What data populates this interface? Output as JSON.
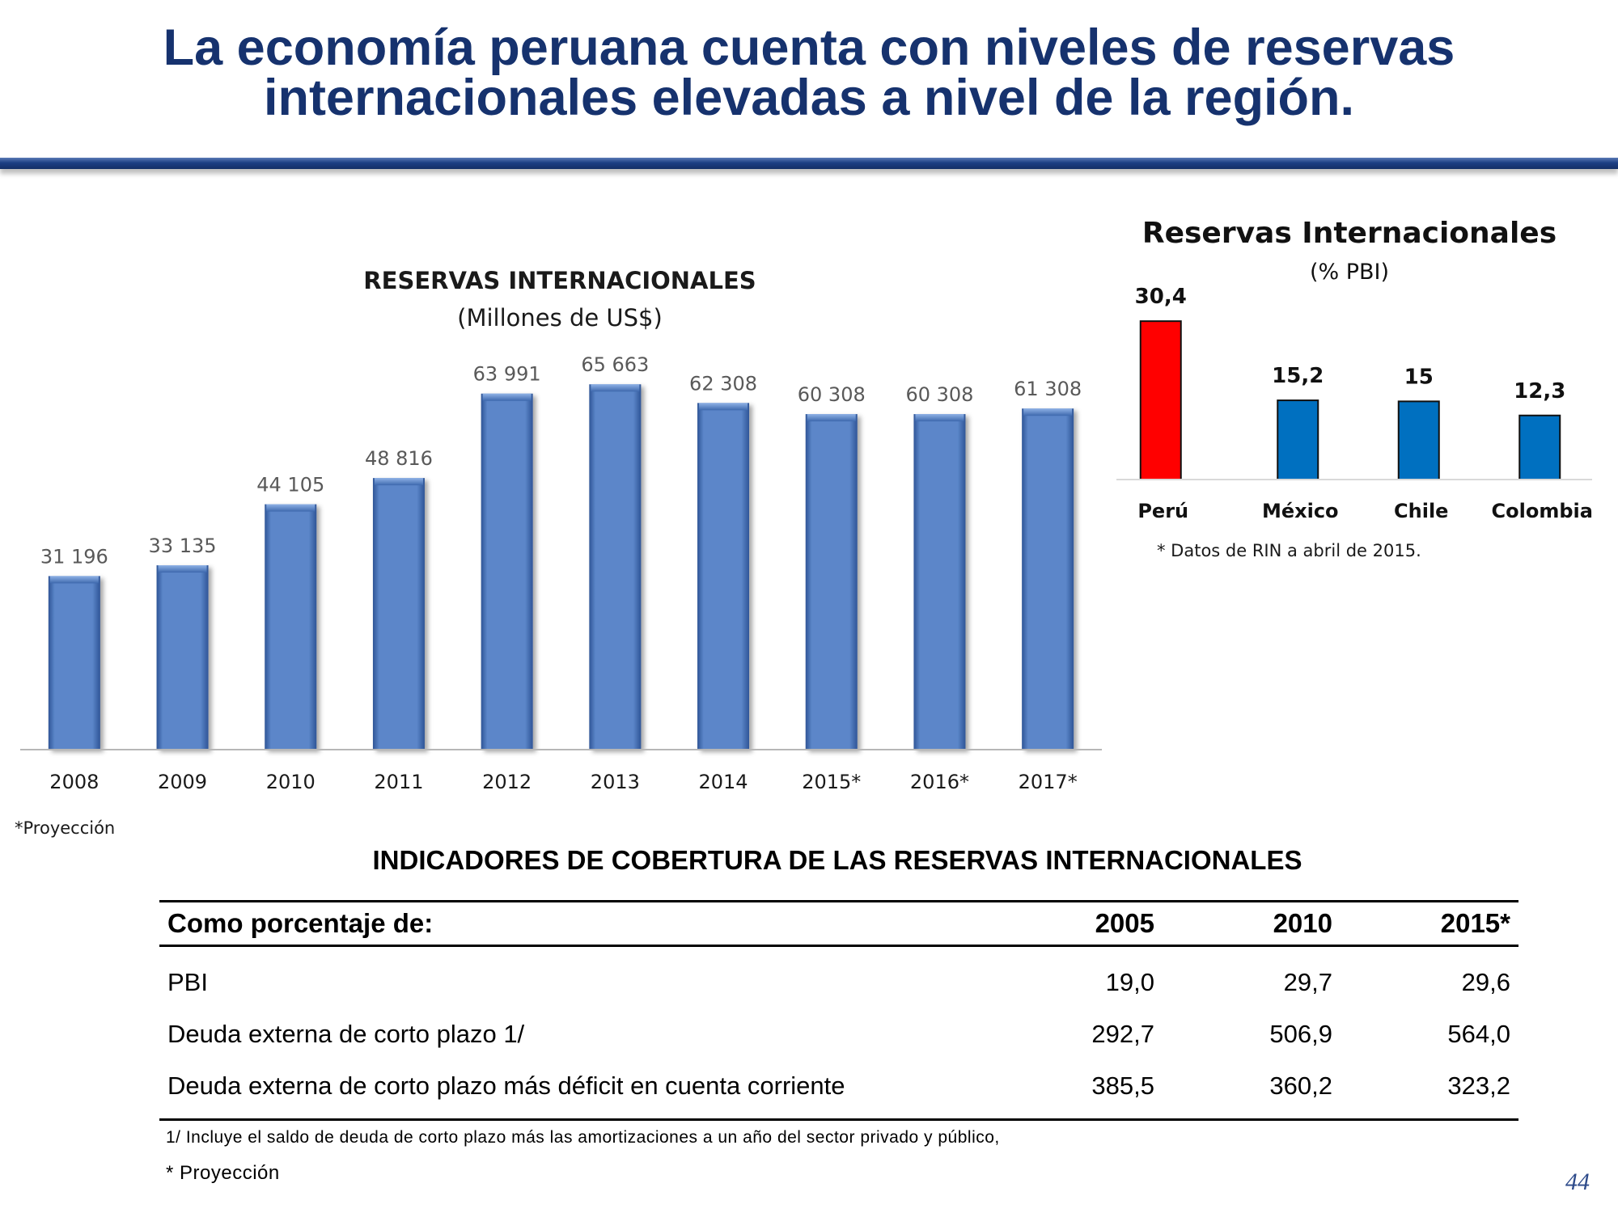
{
  "slide": {
    "title_line1": "La economía peruana cuenta con niveles de reservas",
    "title_line2": "internacionales elevadas a nivel de la región.",
    "page_number": "44"
  },
  "chart_data": [
    {
      "type": "bar",
      "title": "RESERVAS INTERNACIONALES",
      "subtitle": "(Millones de US$)",
      "categories": [
        "2008",
        "2009",
        "2010",
        "2011",
        "2012",
        "2013",
        "2014",
        "2015*",
        "2016*",
        "2017*"
      ],
      "values": [
        31196,
        33135,
        44105,
        48816,
        63991,
        65663,
        62308,
        60308,
        60308,
        61308
      ],
      "labels": [
        "31 196",
        "33 135",
        "44 105",
        "48 816",
        "63 991",
        "65 663",
        "62 308",
        "60 308",
        "60 308",
        "61 308"
      ],
      "ylim": [
        0,
        75000
      ],
      "color": "#5b86c9",
      "footnote": "*Proyección"
    },
    {
      "type": "bar",
      "title": "Reservas Internacionales",
      "subtitle": "(% PBI)",
      "categories": [
        "Perú",
        "México",
        "Chile",
        "Colombia"
      ],
      "values": [
        30.4,
        15.2,
        15,
        12.3
      ],
      "labels": [
        "30,4",
        "15,2",
        "15",
        "12,3"
      ],
      "colors": [
        "#ff0000",
        "#0070c0",
        "#0070c0",
        "#0070c0"
      ],
      "ylim": [
        0,
        35
      ],
      "footnote": "* Datos de RIN a abril de 2015."
    },
    {
      "type": "table",
      "title": "INDICADORES DE COBERTURA DE LAS RESERVAS INTERNACIONALES",
      "header": [
        "Como porcentaje de:",
        "2005",
        "2010",
        "2015*"
      ],
      "rows": [
        {
          "label": "PBI",
          "values": [
            "19,0",
            "29,7",
            "29,6"
          ]
        },
        {
          "label": "Deuda externa de corto plazo 1/",
          "values": [
            "292,7",
            "506,9",
            "564,0"
          ]
        },
        {
          "label": "Deuda externa de corto plazo más déficit en cuenta corriente",
          "values": [
            "385,5",
            "360,2",
            "323,2"
          ]
        }
      ],
      "note1": "1/ Incluye el saldo de deuda de corto plazo más las amortizaciones a un año del sector privado y público,",
      "note2": "* Proyección"
    }
  ]
}
